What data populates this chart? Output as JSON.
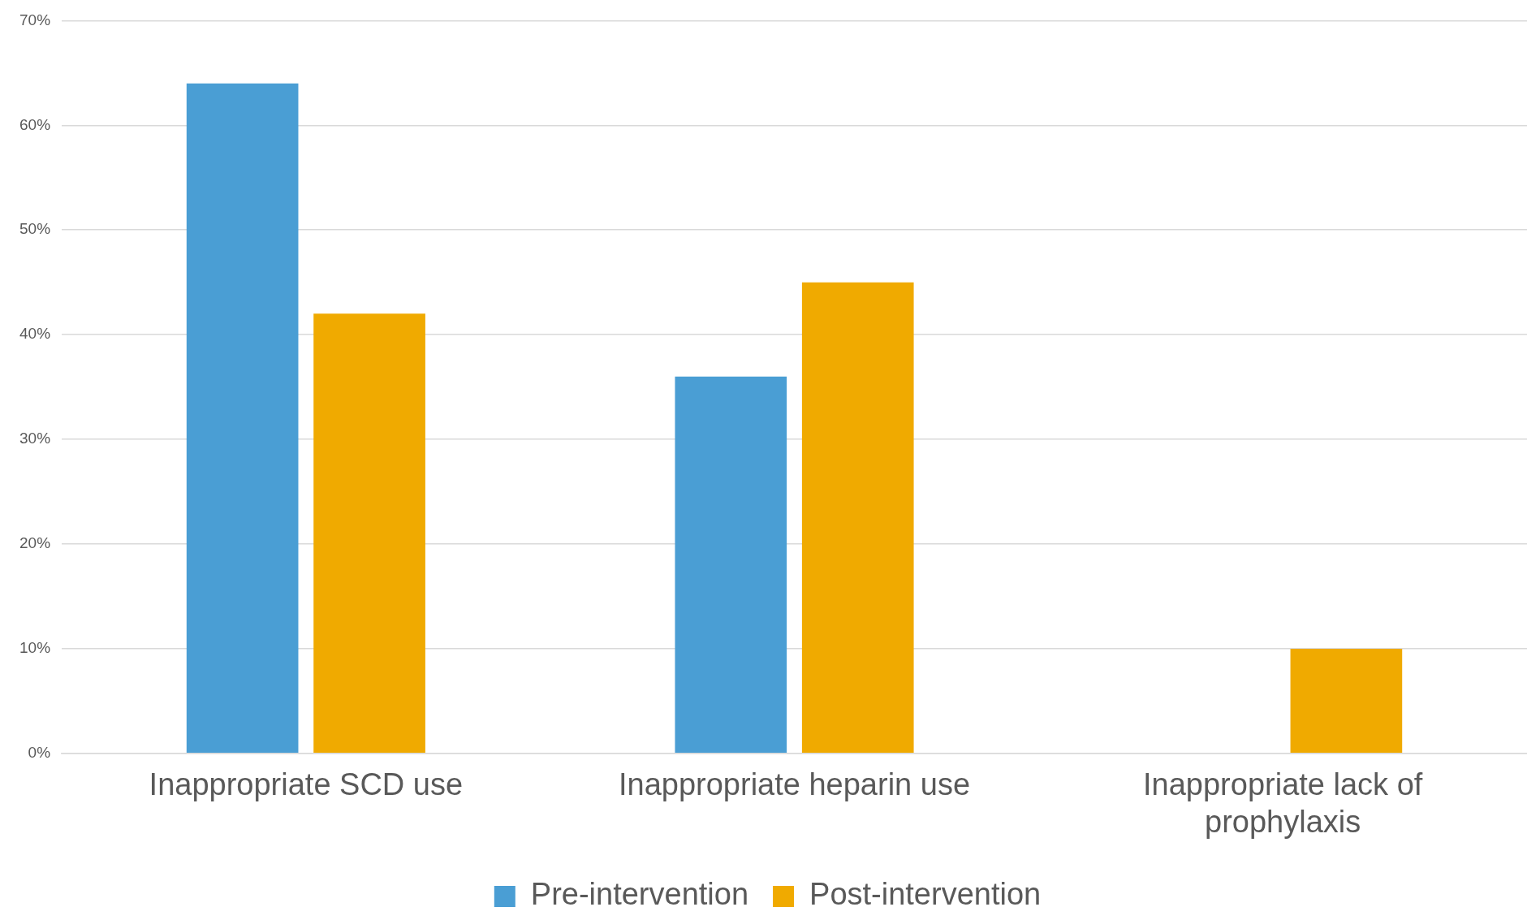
{
  "chart_data": {
    "type": "bar",
    "categories": [
      "Inappropriate SCD use",
      "Inappropriate heparin use",
      "Inappropriate lack of prophylaxis"
    ],
    "series": [
      {
        "name": "Pre-intervention",
        "color": "#4a9ed4",
        "values": [
          64,
          36,
          0
        ]
      },
      {
        "name": "Post-intervention",
        "color": "#f0aa00",
        "values": [
          42,
          45,
          10
        ]
      }
    ],
    "ylim": [
      0,
      70
    ],
    "yticks": [
      {
        "value": 0,
        "label": "0%"
      },
      {
        "value": 10,
        "label": "10%"
      },
      {
        "value": 20,
        "label": "20%"
      },
      {
        "value": 30,
        "label": "30%"
      },
      {
        "value": 40,
        "label": "40%"
      },
      {
        "value": 50,
        "label": "50%"
      },
      {
        "value": 60,
        "label": "60%"
      },
      {
        "value": 70,
        "label": "70%"
      }
    ],
    "grid": "y",
    "legend": "bottom"
  }
}
